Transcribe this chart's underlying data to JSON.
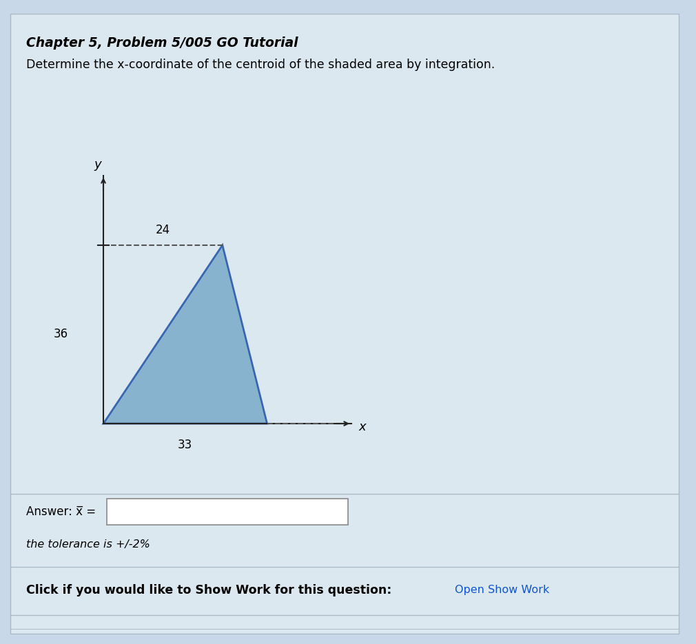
{
  "title_line1": "Chapter 5, Problem 5/005 GO Tutorial",
  "title_line2": "Determine the x-coordinate of the centroid of the shaded area by integration.",
  "dim_24": "24",
  "dim_36": "36",
  "dim_33": "33",
  "label_x": "x",
  "label_y": "y",
  "answer_label": "Answer: x̅ =",
  "tolerance_text": "the tolerance is +/-2%",
  "show_work_plain": "Click if you would like to Show Work for this question:",
  "show_work_link": "Open Show Work",
  "bg_color": "#c8d8e8",
  "panel_color": "#dce8f0",
  "triangle_fill": "#7aaac8",
  "triangle_edge": "#2255aa",
  "dashed_color": "#555555",
  "text_color": "#000000",
  "link_color": "#1155cc",
  "input_box_color": "#ffffff",
  "input_box_border": "#888888"
}
